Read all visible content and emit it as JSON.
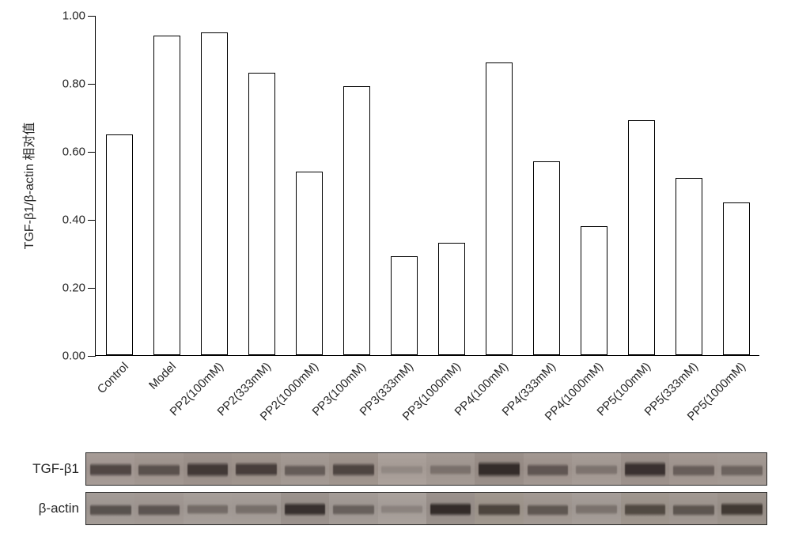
{
  "chart": {
    "type": "bar",
    "axis_title": "TGF-β1/β-actin 相对值",
    "ylim": [
      0.0,
      1.0
    ],
    "yticks": [
      0.0,
      0.2,
      0.4,
      0.6,
      0.8,
      1.0
    ],
    "ytick_labels": [
      "0.00",
      "0.20",
      "0.40",
      "0.60",
      "0.80",
      "1.00"
    ],
    "categories": [
      "Control",
      "Model",
      "PP2(100mM)",
      "PP2(333mM)",
      "PP2(1000mM)",
      "PP3(100mM)",
      "PP3(333mM)",
      "PP3(1000mM)",
      "PP4(100mM)",
      "PP4(333mM)",
      "PP4(1000mM)",
      "PP5(100mM)",
      "PP5(333mM)",
      "PP5(1000mM)"
    ],
    "values": [
      0.65,
      0.94,
      0.95,
      0.83,
      0.54,
      0.79,
      0.29,
      0.33,
      0.86,
      0.57,
      0.38,
      0.69,
      0.52,
      0.45
    ],
    "bar_fill": "#ffffff",
    "bar_border": "#000000",
    "axis_color": "#000000",
    "label_color": "#262626",
    "tick_fontsize": 15,
    "axis_title_fontsize": 16,
    "bar_width_ratio": 0.56
  },
  "blots": {
    "strip_border": "#262626",
    "lane_count": 14,
    "rows": [
      {
        "label": "TGF-β1",
        "lanes": [
          {
            "bg": "#a79c97",
            "band_color": "#433a38",
            "top": 0.3,
            "h": 0.45,
            "opacity": 0.85
          },
          {
            "bg": "#a39892",
            "band_color": "#4a413e",
            "top": 0.32,
            "h": 0.44,
            "opacity": 0.8
          },
          {
            "bg": "#9e938d",
            "band_color": "#3b3230",
            "top": 0.28,
            "h": 0.5,
            "opacity": 0.92
          },
          {
            "bg": "#a1968f",
            "band_color": "#3f3633",
            "top": 0.28,
            "h": 0.48,
            "opacity": 0.9
          },
          {
            "bg": "#a59b95",
            "band_color": "#4e4542",
            "top": 0.34,
            "h": 0.4,
            "opacity": 0.7
          },
          {
            "bg": "#a1968f",
            "band_color": "#423936",
            "top": 0.3,
            "h": 0.46,
            "opacity": 0.86
          },
          {
            "bg": "#aca29c",
            "band_color": "#766e6a",
            "top": 0.38,
            "h": 0.3,
            "opacity": 0.4
          },
          {
            "bg": "#a59b95",
            "band_color": "#5e5551",
            "top": 0.36,
            "h": 0.34,
            "opacity": 0.55
          },
          {
            "bg": "#9b908a",
            "band_color": "#2f2725",
            "top": 0.26,
            "h": 0.52,
            "opacity": 0.95
          },
          {
            "bg": "#a39892",
            "band_color": "#4c4340",
            "top": 0.32,
            "h": 0.42,
            "opacity": 0.75
          },
          {
            "bg": "#a79d97",
            "band_color": "#615854",
            "top": 0.36,
            "h": 0.34,
            "opacity": 0.55
          },
          {
            "bg": "#9e938d",
            "band_color": "#352d2b",
            "top": 0.26,
            "h": 0.52,
            "opacity": 0.95
          },
          {
            "bg": "#a49993",
            "band_color": "#514845",
            "top": 0.34,
            "h": 0.4,
            "opacity": 0.7
          },
          {
            "bg": "#a59b95",
            "band_color": "#564d49",
            "top": 0.34,
            "h": 0.4,
            "opacity": 0.68
          }
        ]
      },
      {
        "label": "β-actin",
        "lanes": [
          {
            "bg": "#a49c97",
            "band_color": "#4a4340",
            "top": 0.34,
            "h": 0.4,
            "opacity": 0.82
          },
          {
            "bg": "#a39a95",
            "band_color": "#4d4542",
            "top": 0.34,
            "h": 0.4,
            "opacity": 0.8
          },
          {
            "bg": "#a79f9a",
            "band_color": "#5c5450",
            "top": 0.36,
            "h": 0.34,
            "opacity": 0.65
          },
          {
            "bg": "#a69e99",
            "band_color": "#5f5753",
            "top": 0.36,
            "h": 0.34,
            "opacity": 0.62
          },
          {
            "bg": "#9c938e",
            "band_color": "#332c2a",
            "top": 0.3,
            "h": 0.46,
            "opacity": 0.95
          },
          {
            "bg": "#a49c97",
            "band_color": "#544c48",
            "top": 0.34,
            "h": 0.38,
            "opacity": 0.72
          },
          {
            "bg": "#aaa29d",
            "band_color": "#6f6763",
            "top": 0.38,
            "h": 0.3,
            "opacity": 0.45
          },
          {
            "bg": "#9b928d",
            "band_color": "#2f2826",
            "top": 0.3,
            "h": 0.46,
            "opacity": 0.96
          },
          {
            "bg": "#a1988f",
            "band_color": "#423a33",
            "top": 0.32,
            "h": 0.44,
            "opacity": 0.88
          },
          {
            "bg": "#a39a94",
            "band_color": "#4f4742",
            "top": 0.34,
            "h": 0.4,
            "opacity": 0.78
          },
          {
            "bg": "#a69e99",
            "band_color": "#615954",
            "top": 0.36,
            "h": 0.34,
            "opacity": 0.58
          },
          {
            "bg": "#a0978f",
            "band_color": "#453d36",
            "top": 0.32,
            "h": 0.42,
            "opacity": 0.85
          },
          {
            "bg": "#a29993",
            "band_color": "#4c443f",
            "top": 0.34,
            "h": 0.4,
            "opacity": 0.78
          },
          {
            "bg": "#9d948d",
            "band_color": "#3a322d",
            "top": 0.3,
            "h": 0.46,
            "opacity": 0.92
          }
        ]
      }
    ]
  }
}
